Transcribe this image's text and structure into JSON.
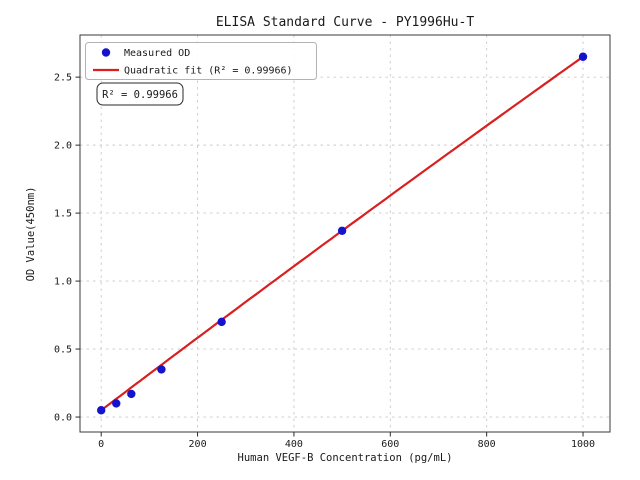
{
  "chart_data": {
    "type": "scatter",
    "title": "ELISA Standard Curve - PY1996Hu-T",
    "xlabel": "Human VEGF-B Concentration (pg/mL)",
    "ylabel": "OD Value(450nm)",
    "xlim": [
      -44,
      1056
    ],
    "ylim": [
      -0.11,
      2.81
    ],
    "x_ticks": {
      "values": [
        0,
        200,
        400,
        600,
        800,
        1000
      ],
      "labels": [
        "0",
        "200",
        "400",
        "600",
        "800",
        "1000"
      ]
    },
    "y_ticks": {
      "values": [
        0.0,
        0.5,
        1.0,
        1.5,
        2.0,
        2.5
      ],
      "labels": [
        "0.0",
        "0.5",
        "1.0",
        "1.5",
        "2.0",
        "2.5"
      ]
    },
    "grid": {
      "visible": true,
      "style": "dashed",
      "color": "#c9c9c9"
    },
    "legend": {
      "position": "upper left",
      "entries": [
        {
          "label": "Measured OD",
          "marker": "circle",
          "color": "#1414cc"
        },
        {
          "label": "Quadratic fit (R² = 0.99966)",
          "marker": "line",
          "color": "#d91f1f"
        }
      ]
    },
    "series": [
      {
        "name": "Measured OD",
        "plot_type": "scatter",
        "color": "#1414cc",
        "x": [
          0,
          31.25,
          62.5,
          125,
          250,
          500,
          1000
        ],
        "y": [
          0.05,
          0.1,
          0.17,
          0.35,
          0.7,
          1.37,
          2.65
        ]
      },
      {
        "name": "Quadratic fit",
        "plot_type": "line",
        "color": "#d91f1f",
        "r_squared": 0.99966,
        "fit": {
          "a": -8e-08,
          "b": 0.00268,
          "c": 0.05,
          "x_start": 0,
          "x_end": 1000
        }
      }
    ],
    "annotation": {
      "text": "R² = 0.99966"
    }
  }
}
